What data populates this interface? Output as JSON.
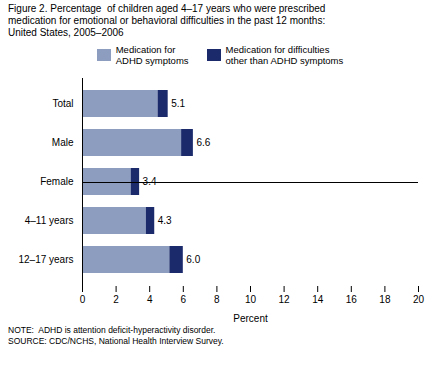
{
  "chart_data": {
    "type": "bar",
    "orientation": "horizontal",
    "stacked": true,
    "title": "Figure 2. Percentage  of children aged 4–17 years who were prescribed\nmedication for emotional or behavioral difficulties in the past 12 months:\nUnited States, 2005–2006",
    "categories": [
      "Total",
      "Male",
      "Female",
      "4–11 years",
      "12–17 years"
    ],
    "series": [
      {
        "name": "Medication for\nADHD symptoms",
        "color": "#8C9DC0",
        "values": [
          4.5,
          5.9,
          2.9,
          3.8,
          5.2
        ]
      },
      {
        "name": "Medication for difficulties\nother than ADHD symptoms",
        "color": "#1B2A6B",
        "values": [
          0.6,
          0.7,
          0.5,
          0.5,
          0.8
        ]
      }
    ],
    "totals": [
      5.1,
      6.6,
      3.4,
      4.3,
      6.0
    ],
    "total_labels": [
      "5.1",
      "6.6",
      "3.4",
      "4.3",
      "6.0"
    ],
    "xlabel": "Percent",
    "xlim": [
      0,
      20
    ],
    "xticks": [
      0,
      2,
      4,
      6,
      8,
      10,
      12,
      14,
      16,
      18,
      20
    ],
    "grid": false,
    "legend": "top",
    "notes": [
      "NOTE:  ADHD is attention deficit-hyperactivity disorder.",
      "SOURCE: CDC/NCHS, National Health Interview Survey."
    ]
  }
}
